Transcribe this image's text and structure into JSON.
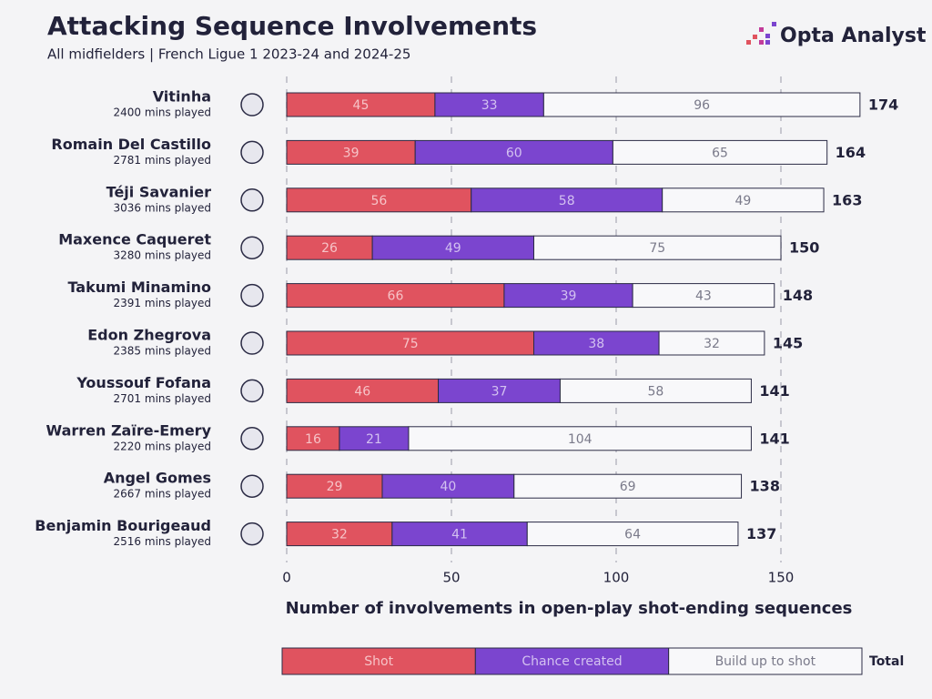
{
  "chart_data": {
    "type": "stacked_bar_horizontal",
    "title": "Attacking Sequence Involvements",
    "subtitle": "All midfielders | French Ligue 1 2023-24 and 2024-25",
    "brand": "Opta Analyst",
    "x_label": "Number of involvements in open-play shot-ending sequences",
    "categories": [
      "Vitinha",
      "Romain Del Castillo",
      "Téji Savanier",
      "Maxence Caqueret",
      "Takumi Minamino",
      "Edon Zhegrova",
      "Youssouf Fofana",
      "Warren Zaïre-Emery",
      "Angel Gomes",
      "Benjamin Bourigeaud"
    ],
    "category_subtitles": [
      "2400 mins played",
      "2781 mins played",
      "3036 mins played",
      "3280 mins played",
      "2391 mins played",
      "2385 mins played",
      "2701 mins played",
      "2220 mins played",
      "2667 mins played",
      "2516 mins played"
    ],
    "series": [
      {
        "name": "Shot",
        "color": "#e0535f",
        "label_color": "#f6c3c7",
        "values": [
          45,
          39,
          56,
          26,
          66,
          75,
          46,
          16,
          29,
          32
        ]
      },
      {
        "name": "Chance created",
        "color": "#7b45cf",
        "label_color": "#d3c1f0",
        "values": [
          33,
          60,
          58,
          49,
          39,
          38,
          37,
          21,
          40,
          41
        ]
      },
      {
        "name": "Build up to shot",
        "color": "#f8f8fa",
        "label_color": "#7a7a8a",
        "values": [
          96,
          65,
          49,
          75,
          43,
          32,
          58,
          104,
          69,
          64
        ]
      }
    ],
    "totals": [
      174,
      164,
      163,
      150,
      148,
      145,
      141,
      141,
      138,
      137
    ],
    "total_label": "Total",
    "xlim": [
      0,
      175
    ],
    "xticks": [
      0,
      50,
      100,
      150
    ],
    "grid": true
  }
}
